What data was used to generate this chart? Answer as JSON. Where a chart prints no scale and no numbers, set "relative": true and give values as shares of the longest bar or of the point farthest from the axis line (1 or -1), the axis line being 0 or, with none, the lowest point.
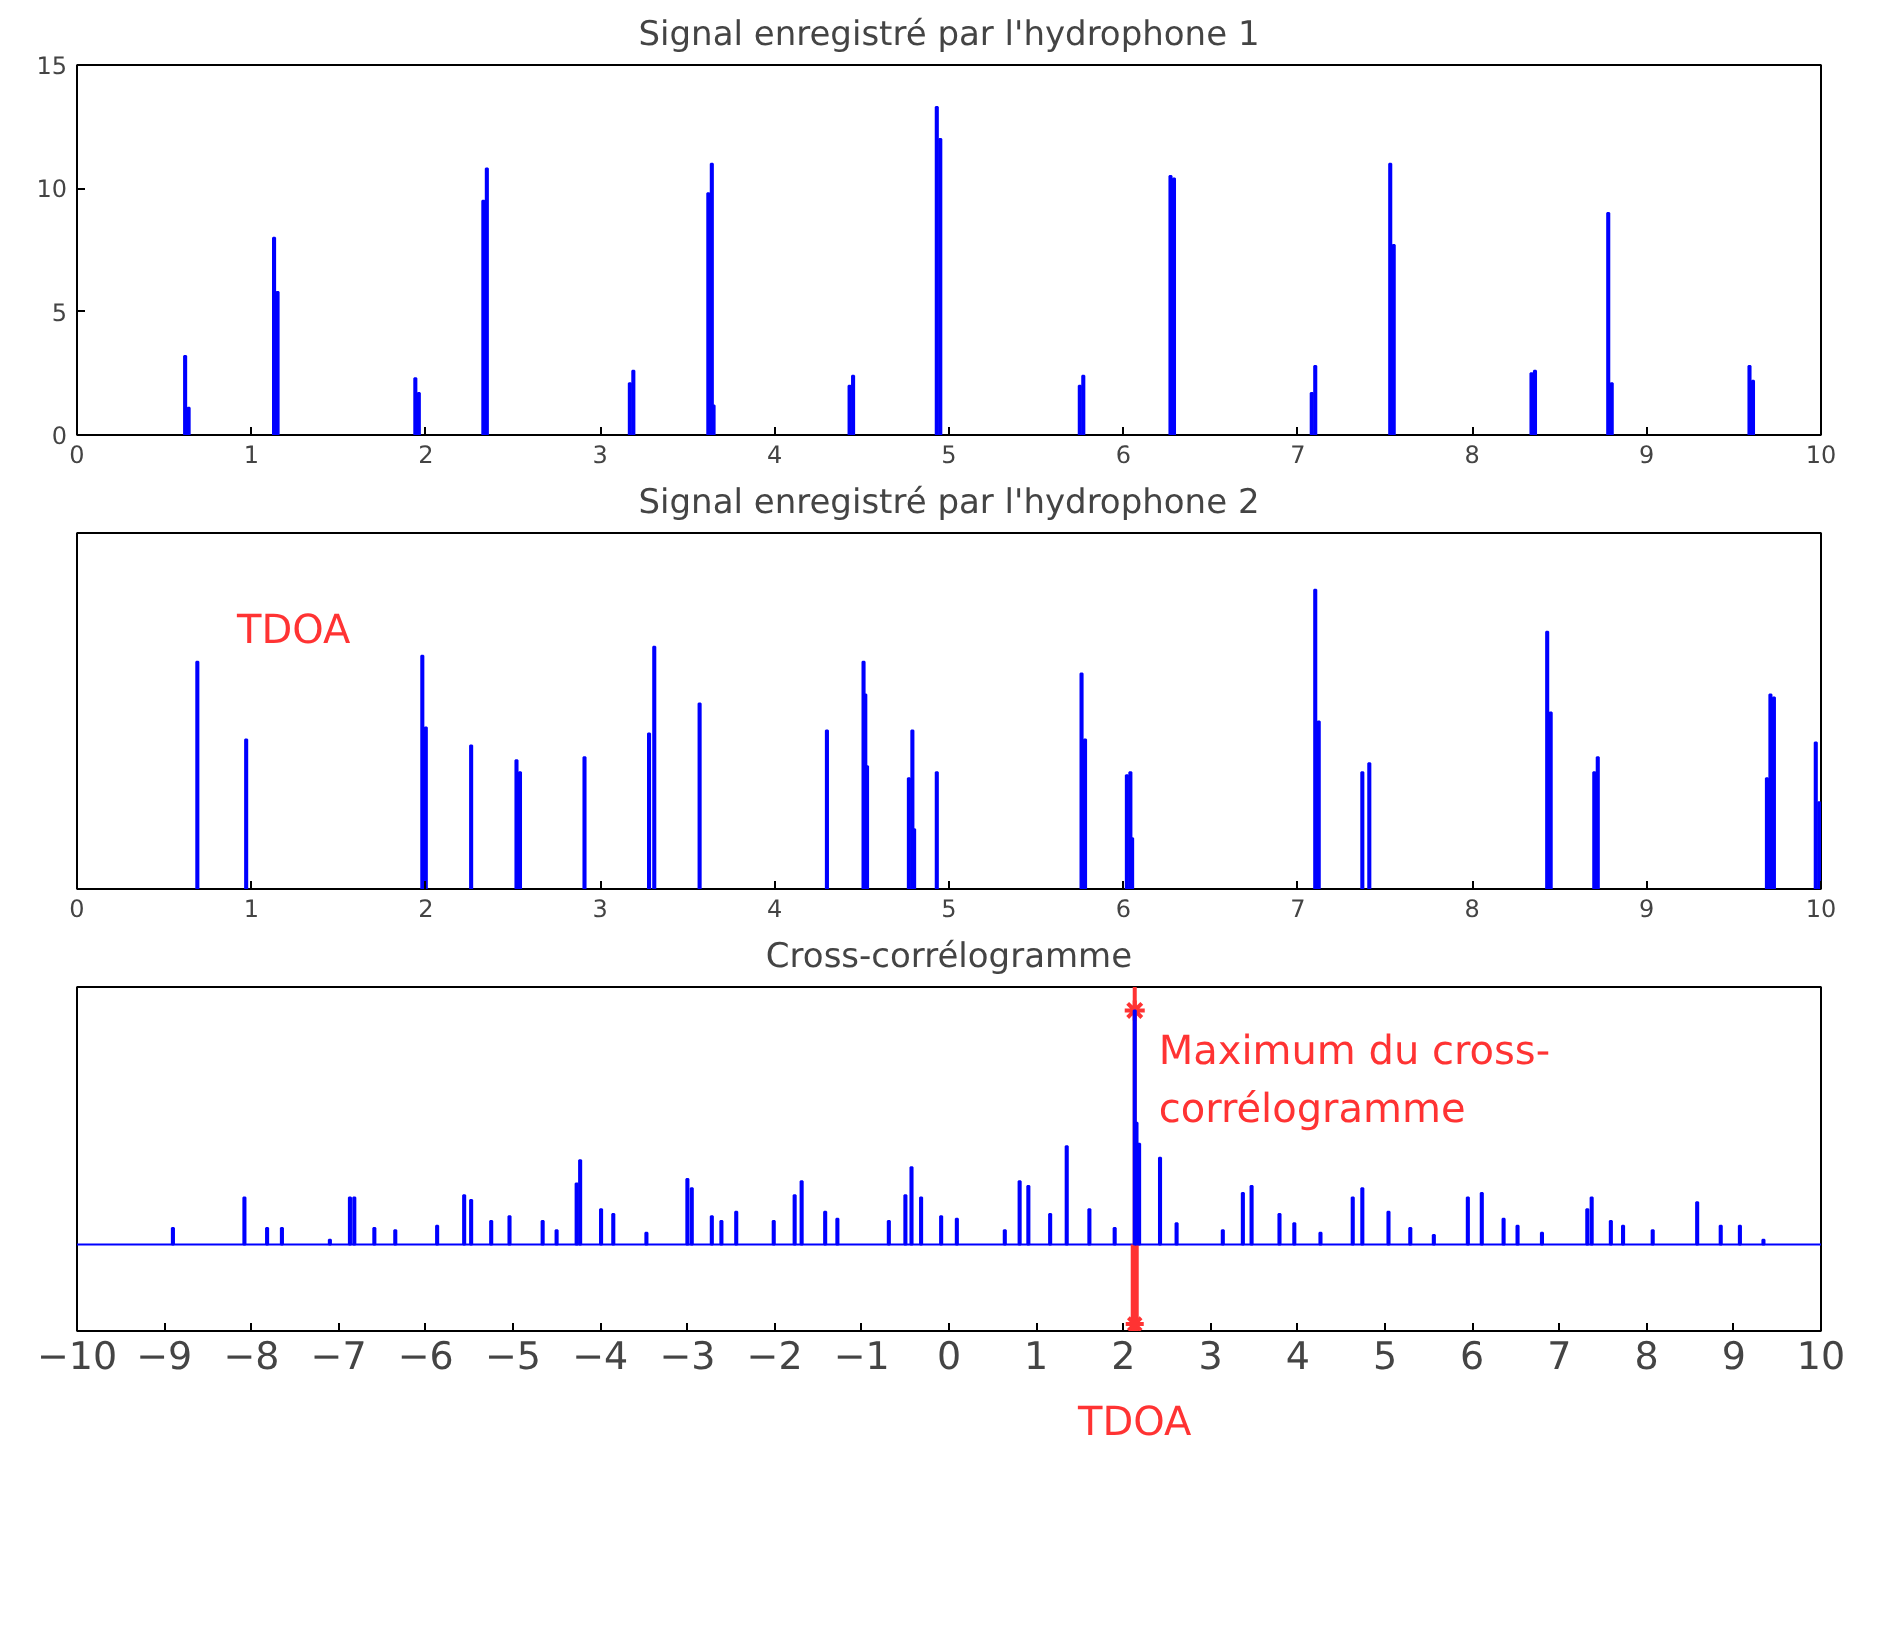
{
  "chart_data": [
    {
      "type": "bar",
      "title": "Signal enregistré par l'hydrophone 1",
      "xlim": [
        0,
        10
      ],
      "xticks": [
        0,
        1,
        2,
        3,
        4,
        5,
        6,
        7,
        8,
        9,
        10
      ],
      "ylim": [
        0,
        15
      ],
      "yticks": [
        0,
        5,
        10,
        15
      ],
      "series": [
        {
          "color": "#0000ff",
          "x": [
            0.62,
            0.64,
            1.13,
            1.15,
            1.94,
            1.96,
            2.33,
            2.35,
            3.17,
            3.19,
            3.62,
            3.64,
            3.65,
            4.43,
            4.45,
            4.93,
            4.95,
            5.75,
            5.77,
            6.27,
            6.29,
            7.08,
            7.1,
            7.53,
            7.55,
            8.34,
            8.36,
            8.78,
            8.8,
            9.59,
            9.61
          ],
          "values": [
            3.2,
            1.1,
            8.0,
            5.8,
            2.3,
            1.7,
            9.5,
            10.8,
            2.1,
            2.6,
            9.8,
            11.0,
            1.2,
            2.0,
            2.4,
            13.3,
            12.0,
            2.0,
            2.4,
            10.5,
            10.4,
            1.7,
            2.8,
            11.0,
            7.7,
            2.5,
            2.6,
            9.0,
            2.1,
            2.8,
            2.2
          ]
        }
      ]
    },
    {
      "type": "bar",
      "title": "Signal enregistré par l'hydrophone 2",
      "relative": true,
      "tick_labels": "x",
      "xlim": [
        0,
        10
      ],
      "xticks": [
        0,
        1,
        2,
        3,
        4,
        5,
        6,
        7,
        8,
        9,
        10
      ],
      "annotations": [
        "TDOA"
      ],
      "series": [
        {
          "color": "#0000ff",
          "x": [
            0.69,
            0.97,
            1.98,
            2.0,
            2.26,
            2.52,
            2.54,
            2.91,
            3.28,
            3.31,
            3.57,
            4.3,
            4.51,
            4.52,
            4.53,
            4.77,
            4.79,
            4.8,
            4.93,
            5.76,
            5.78,
            6.02,
            6.04,
            6.05,
            7.1,
            7.12,
            7.37,
            7.41,
            8.43,
            8.45,
            8.7,
            8.72,
            9.69,
            9.71,
            9.73,
            9.97,
            9.99
          ],
          "values": [
            0.76,
            0.5,
            0.78,
            0.54,
            0.48,
            0.43,
            0.39,
            0.44,
            0.52,
            0.81,
            0.62,
            0.53,
            0.76,
            0.65,
            0.41,
            0.37,
            0.53,
            0.2,
            0.39,
            0.72,
            0.5,
            0.38,
            0.39,
            0.17,
            1.0,
            0.56,
            0.39,
            0.42,
            0.86,
            0.59,
            0.39,
            0.44,
            0.37,
            0.65,
            0.64,
            0.49,
            0.29
          ]
        }
      ]
    },
    {
      "type": "bar",
      "title": "Cross-corrélogramme",
      "relative": true,
      "tick_labels": "x",
      "xlim": [
        -10,
        10
      ],
      "xticks": [
        -10,
        -9,
        -8,
        -7,
        -6,
        -5,
        -4,
        -3,
        -2,
        -1,
        0,
        1,
        2,
        3,
        4,
        5,
        6,
        7,
        8,
        9,
        10
      ],
      "annotations": [
        {
          "text": "Maximum du cross-\ncorrélogramme",
          "x": 2.13,
          "y": 1.0
        }
      ],
      "ref_lines": [
        {
          "axis": "y",
          "value": 0,
          "color": "#0000ff"
        },
        {
          "axis": "x",
          "value": 2.13,
          "label": "TDOA",
          "color": "#ff3333"
        }
      ],
      "series": [
        {
          "color": "#0000ff",
          "x": [
            -8.9,
            -8.08,
            -7.82,
            -7.65,
            -7.1,
            -6.87,
            -6.82,
            -6.59,
            -6.35,
            -5.87,
            -5.56,
            -5.48,
            -5.25,
            -5.04,
            -4.66,
            -4.5,
            -4.27,
            -4.23,
            -3.99,
            -3.85,
            -3.47,
            -3.0,
            -2.95,
            -2.72,
            -2.61,
            -2.44,
            -2.01,
            -1.77,
            -1.69,
            -1.42,
            -1.28,
            -0.69,
            -0.5,
            -0.43,
            -0.32,
            -0.09,
            0.09,
            0.64,
            0.81,
            0.91,
            1.16,
            1.35,
            1.61,
            1.9,
            2.13,
            2.15,
            2.18,
            2.42,
            2.61,
            3.14,
            3.37,
            3.47,
            3.79,
            3.96,
            4.26,
            4.63,
            4.74,
            5.04,
            5.29,
            5.56,
            5.95,
            6.11,
            6.36,
            6.52,
            6.8,
            7.32,
            7.37,
            7.59,
            7.73,
            8.07,
            8.58,
            8.85,
            9.07,
            9.34
          ],
          "values": [
            0.07,
            0.2,
            0.07,
            0.07,
            0.02,
            0.2,
            0.2,
            0.07,
            0.06,
            0.08,
            0.21,
            0.19,
            0.1,
            0.12,
            0.1,
            0.06,
            0.26,
            0.36,
            0.15,
            0.13,
            0.05,
            0.28,
            0.24,
            0.12,
            0.1,
            0.14,
            0.1,
            0.21,
            0.27,
            0.14,
            0.11,
            0.1,
            0.21,
            0.33,
            0.2,
            0.12,
            0.11,
            0.06,
            0.27,
            0.25,
            0.13,
            0.42,
            0.15,
            0.07,
            1.0,
            0.52,
            0.43,
            0.37,
            0.09,
            0.06,
            0.22,
            0.25,
            0.13,
            0.09,
            0.05,
            0.2,
            0.24,
            0.14,
            0.07,
            0.04,
            0.2,
            0.22,
            0.11,
            0.08,
            0.05,
            0.15,
            0.2,
            0.1,
            0.08,
            0.06,
            0.18,
            0.08,
            0.08,
            0.02
          ]
        }
      ]
    }
  ]
}
